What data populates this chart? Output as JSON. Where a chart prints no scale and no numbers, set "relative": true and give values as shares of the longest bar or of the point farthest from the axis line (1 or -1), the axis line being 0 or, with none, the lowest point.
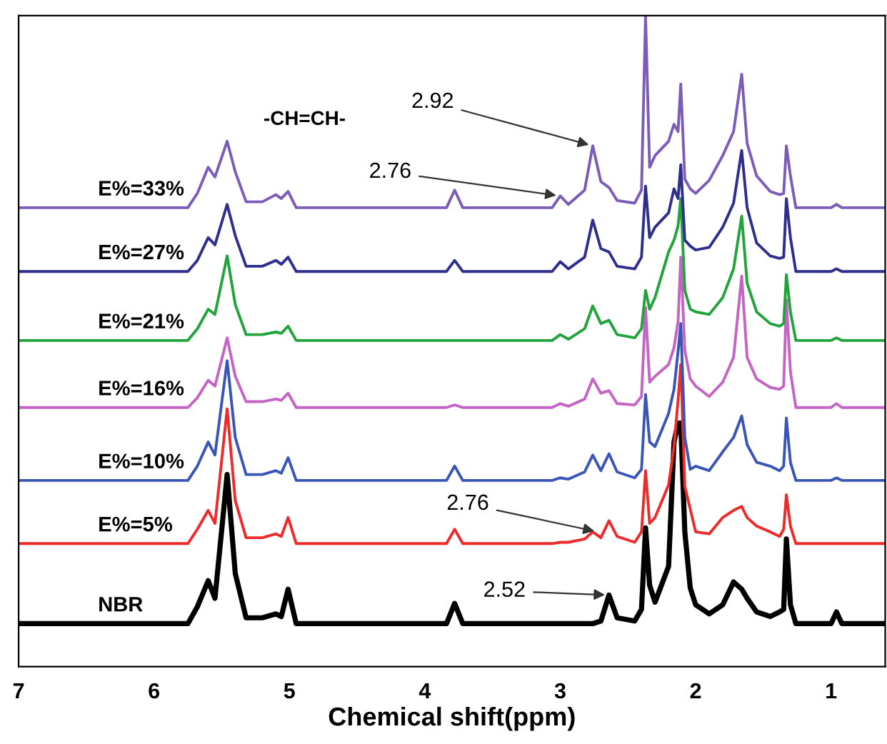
{
  "chart_data": {
    "type": "line",
    "xlabel": "Chemical shift(ppm)",
    "relative": true,
    "xlim": [
      7,
      0.6
    ],
    "xticks": [
      7,
      6,
      5,
      4,
      3,
      2,
      1
    ],
    "x": [
      7.0,
      5.75,
      5.68,
      5.6,
      5.55,
      5.46,
      5.4,
      5.32,
      5.2,
      5.1,
      5.06,
      5.01,
      4.95,
      3.84,
      3.78,
      3.72,
      3.06,
      3.0,
      2.94,
      2.82,
      2.76,
      2.7,
      2.64,
      2.58,
      2.45,
      2.4,
      2.37,
      2.34,
      2.3,
      2.2,
      2.16,
      2.13,
      2.11,
      2.08,
      2.04,
      2.0,
      1.9,
      1.8,
      1.72,
      1.66,
      1.62,
      1.55,
      1.45,
      1.38,
      1.35,
      1.33,
      1.3,
      1.26,
      1.1,
      1.0,
      0.96,
      0.92,
      0.6
    ],
    "series": [
      {
        "name": "NBR",
        "color": "#000000",
        "values": [
          0.066,
          0.066,
          0.092,
          0.132,
          0.105,
          0.295,
          0.143,
          0.075,
          0.075,
          0.081,
          0.077,
          0.119,
          0.066,
          0.066,
          0.097,
          0.066,
          0.066,
          0.066,
          0.066,
          0.066,
          0.066,
          0.07,
          0.11,
          0.075,
          0.07,
          0.088,
          0.213,
          0.125,
          0.099,
          0.154,
          0.345,
          0.374,
          0.374,
          0.207,
          0.121,
          0.095,
          0.081,
          0.095,
          0.13,
          0.119,
          0.105,
          0.084,
          0.077,
          0.084,
          0.088,
          0.196,
          0.095,
          0.066,
          0.066,
          0.066,
          0.084,
          0.066,
          0.066
        ]
      },
      {
        "name": "E%=5%",
        "color": "#ee2a2a",
        "values": [
          0.189,
          0.189,
          0.211,
          0.24,
          0.22,
          0.396,
          0.255,
          0.198,
          0.198,
          0.204,
          0.2,
          0.229,
          0.189,
          0.189,
          0.211,
          0.189,
          0.189,
          0.191,
          0.191,
          0.196,
          0.207,
          0.198,
          0.224,
          0.2,
          0.191,
          0.207,
          0.301,
          0.22,
          0.229,
          0.279,
          0.338,
          0.409,
          0.464,
          0.277,
          0.242,
          0.207,
          0.204,
          0.229,
          0.24,
          0.246,
          0.229,
          0.216,
          0.207,
          0.2,
          0.211,
          0.264,
          0.216,
          0.189,
          0.189,
          0.189,
          0.189,
          0.189,
          0.189
        ]
      },
      {
        "name": "E%=10%",
        "color": "#3a55b8",
        "values": [
          0.286,
          0.286,
          0.308,
          0.345,
          0.325,
          0.47,
          0.352,
          0.295,
          0.295,
          0.301,
          0.297,
          0.321,
          0.286,
          0.286,
          0.308,
          0.286,
          0.286,
          0.29,
          0.288,
          0.299,
          0.325,
          0.301,
          0.327,
          0.299,
          0.29,
          0.303,
          0.418,
          0.345,
          0.338,
          0.389,
          0.426,
          0.484,
          0.527,
          0.352,
          0.303,
          0.308,
          0.301,
          0.33,
          0.352,
          0.385,
          0.341,
          0.314,
          0.308,
          0.301,
          0.308,
          0.382,
          0.314,
          0.286,
          0.286,
          0.286,
          0.29,
          0.286,
          0.286
        ]
      },
      {
        "name": "E%=16%",
        "color": "#c464c4",
        "values": [
          0.398,
          0.398,
          0.413,
          0.44,
          0.431,
          0.505,
          0.446,
          0.407,
          0.407,
          0.411,
          0.409,
          0.42,
          0.398,
          0.398,
          0.402,
          0.398,
          0.398,
          0.404,
          0.4,
          0.411,
          0.442,
          0.42,
          0.424,
          0.404,
          0.402,
          0.415,
          0.552,
          0.437,
          0.446,
          0.464,
          0.49,
          0.53,
          0.629,
          0.486,
          0.442,
          0.431,
          0.415,
          0.437,
          0.475,
          0.6,
          0.475,
          0.442,
          0.429,
          0.426,
          0.431,
          0.563,
          0.453,
          0.398,
          0.398,
          0.398,
          0.404,
          0.398,
          0.398
        ]
      },
      {
        "name": "E%=21%",
        "color": "#22a33c",
        "values": [
          0.501,
          0.501,
          0.519,
          0.549,
          0.541,
          0.631,
          0.556,
          0.51,
          0.51,
          0.514,
          0.512,
          0.523,
          0.501,
          0.501,
          0.501,
          0.501,
          0.501,
          0.51,
          0.503,
          0.519,
          0.554,
          0.527,
          0.532,
          0.51,
          0.505,
          0.519,
          0.578,
          0.549,
          0.567,
          0.637,
          0.655,
          0.677,
          0.719,
          0.578,
          0.549,
          0.545,
          0.541,
          0.567,
          0.611,
          0.692,
          0.589,
          0.545,
          0.527,
          0.523,
          0.527,
          0.602,
          0.545,
          0.501,
          0.501,
          0.501,
          0.505,
          0.501,
          0.501
        ]
      },
      {
        "name": "E%=27%",
        "color": "#2e2e8c",
        "values": [
          0.607,
          0.607,
          0.624,
          0.659,
          0.648,
          0.71,
          0.662,
          0.615,
          0.615,
          0.624,
          0.618,
          0.629,
          0.607,
          0.607,
          0.624,
          0.607,
          0.607,
          0.622,
          0.611,
          0.629,
          0.686,
          0.642,
          0.637,
          0.615,
          0.611,
          0.629,
          0.738,
          0.659,
          0.675,
          0.697,
          0.734,
          0.719,
          0.771,
          0.655,
          0.646,
          0.64,
          0.644,
          0.675,
          0.712,
          0.793,
          0.705,
          0.651,
          0.631,
          0.627,
          0.629,
          0.719,
          0.659,
          0.607,
          0.607,
          0.607,
          0.611,
          0.607,
          0.607
        ]
      },
      {
        "name": "E%=33%",
        "color": "#7b5cb8",
        "values": [
          0.705,
          0.705,
          0.727,
          0.767,
          0.752,
          0.807,
          0.76,
          0.714,
          0.714,
          0.725,
          0.719,
          0.73,
          0.705,
          0.705,
          0.732,
          0.705,
          0.705,
          0.723,
          0.71,
          0.732,
          0.8,
          0.745,
          0.736,
          0.716,
          0.712,
          0.732,
          1.0,
          0.767,
          0.785,
          0.807,
          0.833,
          0.822,
          0.895,
          0.749,
          0.734,
          0.727,
          0.747,
          0.785,
          0.822,
          0.91,
          0.804,
          0.754,
          0.73,
          0.725,
          0.727,
          0.8,
          0.754,
          0.705,
          0.705,
          0.705,
          0.71,
          0.705,
          0.705
        ]
      }
    ],
    "annotations": [
      "-CH=CH-",
      {
        "text": "2.92",
        "x": 2.76,
        "y": 0.8
      },
      {
        "text": "2.76",
        "x": 3.0,
        "y": 0.723
      },
      {
        "text": "2.76",
        "x": 2.72,
        "y": 0.207
      },
      {
        "text": "2.52",
        "x": 2.64,
        "y": 0.11
      }
    ]
  }
}
